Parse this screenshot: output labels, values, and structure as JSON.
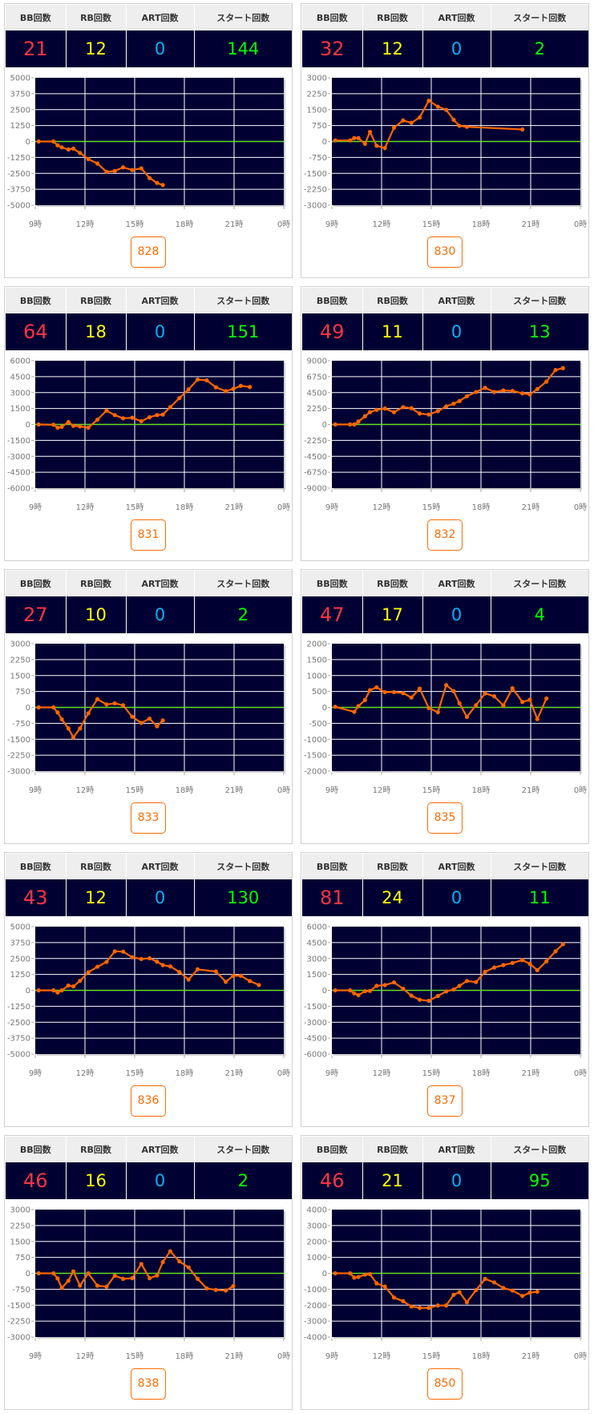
{
  "headers": {
    "bb": "BB回数",
    "rb": "RB回数",
    "art": "ART回数",
    "start": "スタート回数"
  },
  "colors": {
    "bb": "#ff3344",
    "rb": "#ffff00",
    "art": "#00b4ff",
    "start": "#00ff00",
    "plot_bg": "#000033",
    "line": "#ff6600",
    "zero_line": "#66dd22"
  },
  "panels": [
    {
      "machine": "828",
      "bb": "21",
      "rb": "12",
      "art": "0",
      "start": "144"
    },
    {
      "machine": "830",
      "bb": "32",
      "rb": "12",
      "art": "0",
      "start": "2"
    },
    {
      "machine": "831",
      "bb": "64",
      "rb": "18",
      "art": "0",
      "start": "151"
    },
    {
      "machine": "832",
      "bb": "49",
      "rb": "11",
      "art": "0",
      "start": "13"
    },
    {
      "machine": "833",
      "bb": "27",
      "rb": "10",
      "art": "0",
      "start": "2"
    },
    {
      "machine": "835",
      "bb": "47",
      "rb": "17",
      "art": "0",
      "start": "4"
    },
    {
      "machine": "836",
      "bb": "43",
      "rb": "12",
      "art": "0",
      "start": "130"
    },
    {
      "machine": "837",
      "bb": "81",
      "rb": "24",
      "art": "0",
      "start": "11"
    },
    {
      "machine": "838",
      "bb": "46",
      "rb": "16",
      "art": "0",
      "start": "2"
    },
    {
      "machine": "850",
      "bb": "46",
      "rb": "21",
      "art": "0",
      "start": "95"
    }
  ],
  "chart_data": [
    {
      "type": "line",
      "title": "828",
      "xlim": [
        9,
        24
      ],
      "xticks": [
        "9時",
        "12時",
        "15時",
        "18時",
        "21時",
        "0時"
      ],
      "ylim": [
        -5000,
        5000
      ],
      "yticks": [
        "5000",
        "3750",
        "2500",
        "1250",
        "0",
        "-1250",
        "-2500",
        "-3750",
        "-5000"
      ],
      "grid": true,
      "points": [
        [
          9.2,
          0
        ],
        [
          10.1,
          0
        ],
        [
          10.35,
          -300
        ],
        [
          10.6,
          -460
        ],
        [
          11.0,
          -630
        ],
        [
          11.3,
          -560
        ],
        [
          11.7,
          -900
        ],
        [
          12.2,
          -1380
        ],
        [
          12.75,
          -1730
        ],
        [
          13.3,
          -2380
        ],
        [
          13.8,
          -2320
        ],
        [
          14.3,
          -2030
        ],
        [
          14.85,
          -2240
        ],
        [
          15.4,
          -2110
        ],
        [
          15.9,
          -2870
        ],
        [
          16.35,
          -3250
        ],
        [
          16.7,
          -3420
        ]
      ]
    },
    {
      "type": "line",
      "title": "830",
      "xlim": [
        9,
        24
      ],
      "xticks": [
        "9時",
        "12時",
        "15時",
        "18時",
        "21時",
        "0時"
      ],
      "ylim": [
        -3000,
        3000
      ],
      "yticks": [
        "3000",
        "2250",
        "1500",
        "750",
        "0",
        "-750",
        "-1500",
        "-2250",
        "-3000"
      ],
      "grid": true,
      "points": [
        [
          9.2,
          50
        ],
        [
          10.1,
          50
        ],
        [
          10.35,
          160
        ],
        [
          10.6,
          160
        ],
        [
          11.0,
          -110
        ],
        [
          11.3,
          450
        ],
        [
          11.7,
          -200
        ],
        [
          12.2,
          -310
        ],
        [
          12.75,
          650
        ],
        [
          13.3,
          990
        ],
        [
          13.8,
          880
        ],
        [
          14.3,
          1130
        ],
        [
          14.85,
          1920
        ],
        [
          15.4,
          1640
        ],
        [
          15.9,
          1490
        ],
        [
          16.35,
          1020
        ],
        [
          16.7,
          740
        ],
        [
          17.15,
          690
        ],
        [
          20.5,
          565
        ]
      ]
    },
    {
      "type": "line",
      "title": "831",
      "xlim": [
        9,
        24
      ],
      "xticks": [
        "9時",
        "12時",
        "15時",
        "18時",
        "21時",
        "0時"
      ],
      "ylim": [
        -6000,
        6000
      ],
      "yticks": [
        "6000",
        "4500",
        "3000",
        "1500",
        "0",
        "-1500",
        "-3000",
        "-4500",
        "-6000"
      ],
      "grid": true,
      "points": [
        [
          9.2,
          0
        ],
        [
          10.1,
          -30
        ],
        [
          10.35,
          -300
        ],
        [
          10.6,
          -230
        ],
        [
          11.0,
          230
        ],
        [
          11.3,
          -130
        ],
        [
          11.7,
          -180
        ],
        [
          12.2,
          -300
        ],
        [
          12.75,
          450
        ],
        [
          13.3,
          1300
        ],
        [
          13.8,
          880
        ],
        [
          14.3,
          580
        ],
        [
          14.85,
          630
        ],
        [
          15.4,
          300
        ],
        [
          15.9,
          680
        ],
        [
          16.35,
          880
        ],
        [
          16.7,
          930
        ],
        [
          17.15,
          1630
        ],
        [
          17.7,
          2480
        ],
        [
          18.25,
          3300
        ],
        [
          18.8,
          4230
        ],
        [
          19.35,
          4150
        ],
        [
          19.9,
          3500
        ],
        [
          20.5,
          3130
        ],
        [
          20.95,
          3350
        ],
        [
          21.4,
          3630
        ],
        [
          21.95,
          3530
        ]
      ]
    },
    {
      "type": "line",
      "title": "832",
      "xlim": [
        9,
        24
      ],
      "xticks": [
        "9時",
        "12時",
        "15時",
        "18時",
        "21時",
        "0時"
      ],
      "ylim": [
        -9000,
        9000
      ],
      "yticks": [
        "9000",
        "6750",
        "4500",
        "2250",
        "0",
        "-2250",
        "-4500",
        "-6750",
        "-9000"
      ],
      "grid": true,
      "points": [
        [
          9.2,
          0
        ],
        [
          10.1,
          0
        ],
        [
          10.35,
          0
        ],
        [
          10.6,
          410
        ],
        [
          11.0,
          1160
        ],
        [
          11.3,
          1730
        ],
        [
          11.7,
          2060
        ],
        [
          12.2,
          2250
        ],
        [
          12.75,
          1730
        ],
        [
          13.3,
          2440
        ],
        [
          13.8,
          2290
        ],
        [
          14.3,
          1540
        ],
        [
          14.85,
          1390
        ],
        [
          15.4,
          1880
        ],
        [
          15.9,
          2550
        ],
        [
          16.35,
          2930
        ],
        [
          16.7,
          3300
        ],
        [
          17.15,
          3980
        ],
        [
          17.7,
          4580
        ],
        [
          18.25,
          5180
        ],
        [
          18.8,
          4580
        ],
        [
          19.35,
          4800
        ],
        [
          19.9,
          4730
        ],
        [
          20.5,
          4390
        ],
        [
          20.95,
          4240
        ],
        [
          21.4,
          4990
        ],
        [
          21.95,
          6040
        ],
        [
          22.5,
          7690
        ],
        [
          22.95,
          7950
        ]
      ]
    },
    {
      "type": "line",
      "title": "833",
      "xlim": [
        9,
        24
      ],
      "xticks": [
        "9時",
        "12時",
        "15時",
        "18時",
        "21時",
        "0時"
      ],
      "ylim": [
        -3000,
        3000
      ],
      "yticks": [
        "3000",
        "2250",
        "1500",
        "750",
        "0",
        "-750",
        "-1500",
        "-2250",
        "-3000"
      ],
      "grid": true,
      "points": [
        [
          9.2,
          0
        ],
        [
          10.1,
          0
        ],
        [
          10.35,
          -240
        ],
        [
          10.6,
          -560
        ],
        [
          11.0,
          -990
        ],
        [
          11.3,
          -1410
        ],
        [
          11.7,
          -990
        ],
        [
          12.2,
          -280
        ],
        [
          12.75,
          390
        ],
        [
          13.3,
          140
        ],
        [
          13.8,
          190
        ],
        [
          14.3,
          100
        ],
        [
          14.85,
          -440
        ],
        [
          15.4,
          -730
        ],
        [
          15.9,
          -530
        ],
        [
          16.35,
          -890
        ],
        [
          16.7,
          -610
        ]
      ]
    },
    {
      "type": "line",
      "title": "835",
      "xlim": [
        9,
        24
      ],
      "xticks": [
        "9時",
        "12時",
        "15時",
        "18時",
        "21時",
        "0時"
      ],
      "ylim": [
        -2000,
        2000
      ],
      "yticks": [
        "2000",
        "1500",
        "1000",
        "500",
        "0",
        "-500",
        "-1000",
        "-1500",
        "-2000"
      ],
      "grid": true,
      "points": [
        [
          9.2,
          20
        ],
        [
          10.35,
          -140
        ],
        [
          10.6,
          40
        ],
        [
          11.0,
          230
        ],
        [
          11.3,
          540
        ],
        [
          11.7,
          630
        ],
        [
          12.2,
          480
        ],
        [
          12.75,
          480
        ],
        [
          13.3,
          450
        ],
        [
          13.8,
          310
        ],
        [
          14.3,
          590
        ],
        [
          14.85,
          -20
        ],
        [
          15.4,
          -150
        ],
        [
          15.9,
          700
        ],
        [
          16.35,
          510
        ],
        [
          16.7,
          130
        ],
        [
          17.15,
          -300
        ],
        [
          17.7,
          70
        ],
        [
          18.25,
          440
        ],
        [
          18.8,
          350
        ],
        [
          19.35,
          60
        ],
        [
          19.9,
          600
        ],
        [
          20.5,
          170
        ],
        [
          20.95,
          240
        ],
        [
          21.4,
          -370
        ],
        [
          21.95,
          280
        ]
      ]
    },
    {
      "type": "line",
      "title": "836",
      "xlim": [
        9,
        24
      ],
      "xticks": [
        "9時",
        "12時",
        "15時",
        "18時",
        "21時",
        "0時"
      ],
      "ylim": [
        -5000,
        5000
      ],
      "yticks": [
        "5000",
        "3750",
        "2500",
        "1250",
        "0",
        "-1250",
        "-2500",
        "-3750",
        "-5000"
      ],
      "grid": true,
      "points": [
        [
          9.2,
          0
        ],
        [
          10.1,
          0
        ],
        [
          10.35,
          -170
        ],
        [
          10.6,
          0
        ],
        [
          11.0,
          380
        ],
        [
          11.3,
          310
        ],
        [
          11.7,
          750
        ],
        [
          12.2,
          1420
        ],
        [
          12.75,
          1850
        ],
        [
          13.3,
          2230
        ],
        [
          13.8,
          3060
        ],
        [
          14.3,
          3040
        ],
        [
          14.85,
          2600
        ],
        [
          15.4,
          2460
        ],
        [
          15.9,
          2520
        ],
        [
          16.35,
          2250
        ],
        [
          16.7,
          1980
        ],
        [
          17.15,
          1880
        ],
        [
          17.7,
          1440
        ],
        [
          18.25,
          850
        ],
        [
          18.8,
          1650
        ],
        [
          19.9,
          1480
        ],
        [
          20.5,
          670
        ],
        [
          20.95,
          1150
        ],
        [
          21.4,
          1150
        ],
        [
          21.95,
          730
        ],
        [
          22.5,
          420
        ]
      ]
    },
    {
      "type": "line",
      "title": "837",
      "xlim": [
        9,
        24
      ],
      "xticks": [
        "9時",
        "12時",
        "15時",
        "18時",
        "21時",
        "0時"
      ],
      "ylim": [
        -6000,
        6000
      ],
      "yticks": [
        "6000",
        "4500",
        "3000",
        "1500",
        "0",
        "-1500",
        "-3000",
        "-4500",
        "-6000"
      ],
      "grid": true,
      "points": [
        [
          9.2,
          0
        ],
        [
          10.1,
          0
        ],
        [
          10.35,
          -280
        ],
        [
          10.6,
          -450
        ],
        [
          11.0,
          -80
        ],
        [
          11.3,
          -50
        ],
        [
          11.7,
          430
        ],
        [
          12.2,
          500
        ],
        [
          12.75,
          750
        ],
        [
          13.3,
          150
        ],
        [
          13.8,
          -500
        ],
        [
          14.3,
          -880
        ],
        [
          14.85,
          -980
        ],
        [
          15.4,
          -530
        ],
        [
          15.9,
          -100
        ],
        [
          16.35,
          80
        ],
        [
          16.7,
          430
        ],
        [
          17.15,
          880
        ],
        [
          17.7,
          780
        ],
        [
          18.25,
          1750
        ],
        [
          18.8,
          2150
        ],
        [
          19.35,
          2380
        ],
        [
          19.9,
          2580
        ],
        [
          20.5,
          2850
        ],
        [
          20.95,
          2500
        ],
        [
          21.4,
          1900
        ],
        [
          21.95,
          2730
        ],
        [
          22.5,
          3680
        ],
        [
          22.95,
          4350
        ]
      ]
    },
    {
      "type": "line",
      "title": "838",
      "xlim": [
        9,
        24
      ],
      "xticks": [
        "9時",
        "12時",
        "15時",
        "18時",
        "21時",
        "0時"
      ],
      "ylim": [
        -3000,
        3000
      ],
      "yticks": [
        "3000",
        "2250",
        "1500",
        "750",
        "0",
        "-750",
        "-1500",
        "-2250",
        "-3000"
      ],
      "grid": true,
      "points": [
        [
          9.2,
          0
        ],
        [
          10.1,
          0
        ],
        [
          10.35,
          -240
        ],
        [
          10.6,
          -690
        ],
        [
          11.0,
          -350
        ],
        [
          11.3,
          90
        ],
        [
          11.7,
          -580
        ],
        [
          12.2,
          0
        ],
        [
          12.75,
          -580
        ],
        [
          13.3,
          -630
        ],
        [
          13.8,
          -110
        ],
        [
          14.3,
          -260
        ],
        [
          14.85,
          -230
        ],
        [
          15.4,
          440
        ],
        [
          15.9,
          -230
        ],
        [
          16.35,
          -100
        ],
        [
          16.7,
          530
        ],
        [
          17.15,
          1040
        ],
        [
          17.7,
          560
        ],
        [
          18.25,
          280
        ],
        [
          18.8,
          -260
        ],
        [
          19.35,
          -710
        ],
        [
          19.9,
          -780
        ],
        [
          20.5,
          -810
        ],
        [
          20.95,
          -600
        ]
      ]
    },
    {
      "type": "line",
      "title": "850",
      "xlim": [
        9,
        24
      ],
      "xticks": [
        "9時",
        "12時",
        "15時",
        "18時",
        "21時",
        "0時"
      ],
      "ylim": [
        -4000,
        4000
      ],
      "yticks": [
        "4000",
        "3000",
        "2000",
        "1000",
        "0",
        "-1000",
        "-2000",
        "-3000",
        "-4000"
      ],
      "grid": true,
      "points": [
        [
          9.2,
          0
        ],
        [
          10.1,
          0
        ],
        [
          10.35,
          -270
        ],
        [
          10.6,
          -230
        ],
        [
          11.0,
          -80
        ],
        [
          11.3,
          -50
        ],
        [
          11.7,
          -630
        ],
        [
          12.2,
          -830
        ],
        [
          12.75,
          -1520
        ],
        [
          13.3,
          -1750
        ],
        [
          13.8,
          -2080
        ],
        [
          14.3,
          -2170
        ],
        [
          14.85,
          -2170
        ],
        [
          15.4,
          -2020
        ],
        [
          15.9,
          -2020
        ],
        [
          16.35,
          -1350
        ],
        [
          16.7,
          -1180
        ],
        [
          17.15,
          -1820
        ],
        [
          17.7,
          -1050
        ],
        [
          18.25,
          -350
        ],
        [
          18.8,
          -570
        ],
        [
          19.35,
          -920
        ],
        [
          19.9,
          -1080
        ],
        [
          20.5,
          -1420
        ],
        [
          20.95,
          -1220
        ],
        [
          21.4,
          -1150
        ]
      ]
    }
  ]
}
